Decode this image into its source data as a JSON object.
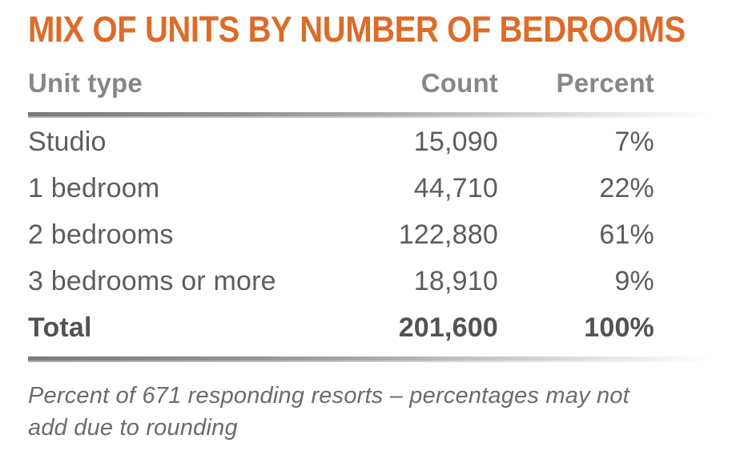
{
  "title": "MIX OF UNITS BY NUMBER OF BEDROOMS",
  "table": {
    "columns": {
      "unit_type": "Unit type",
      "count": "Count",
      "percent": "Percent"
    },
    "rows": [
      {
        "unit_type": "Studio",
        "count": "15,090",
        "percent": "7%"
      },
      {
        "unit_type": "1 bedroom",
        "count": "44,710",
        "percent": "22%"
      },
      {
        "unit_type": "2 bedrooms",
        "count": "122,880",
        "percent": "61%"
      },
      {
        "unit_type": "3 bedrooms or more",
        "count": "18,910",
        "percent": "9%"
      }
    ],
    "total": {
      "unit_type": "Total",
      "count": "201,600",
      "percent": "100%"
    }
  },
  "footnote": {
    "line1": "Percent of 671 responding resorts – percentages may not",
    "line2": "add due to rounding",
    "full_text": "Percent of 671 responding resorts – percentages may not add due to rounding"
  },
  "colors": {
    "accent_orange": "#DC6C28",
    "header_text": "#85878A",
    "body_text": "#5B5D60",
    "total_text": "#515255",
    "footnote_text": "#6A6B6E",
    "divider_dark": "#797B7F"
  },
  "chart_data": {
    "type": "table",
    "title": "MIX OF UNITS BY NUMBER OF BEDROOMS",
    "columns": [
      "Unit type",
      "Count",
      "Percent"
    ],
    "categories": [
      "Studio",
      "1 bedroom",
      "2 bedrooms",
      "3 bedrooms or more"
    ],
    "series": [
      {
        "name": "Count",
        "values": [
          15090,
          44710,
          122880,
          18910
        ]
      },
      {
        "name": "Percent",
        "values": [
          7,
          22,
          61,
          9
        ]
      }
    ],
    "total": {
      "label": "Total",
      "count": 201600,
      "percent": 100
    },
    "annotations": [
      "Percent of 671 responding resorts – percentages may not add due to rounding"
    ],
    "responding_resorts": 671
  }
}
